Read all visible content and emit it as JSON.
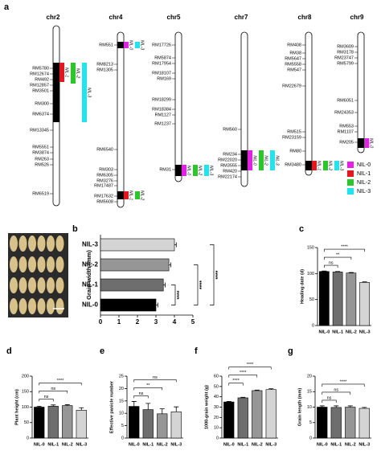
{
  "chromosome_map": {
    "panel": "a",
    "chromosomes": [
      {
        "name": "chr2",
        "markers": [
          "RM5780",
          "RM12674",
          "RM492",
          "RM12857",
          "RM3501",
          "RM300",
          "RM6374",
          "RM13345",
          "RM5551",
          "RM3874",
          "RM263",
          "RM526",
          "RM6519"
        ],
        "segments": [
          "NIL-1",
          "NIL-2",
          "NIL-3"
        ]
      },
      {
        "name": "chr4",
        "markers": [
          "RM551",
          "RM8213",
          "RM1305",
          "RM6540",
          "RM303",
          "RM6305",
          "RM3276",
          "RM17487",
          "RM17632",
          "RM5608"
        ],
        "segments": [
          "NIL-0",
          "NIL-3",
          "NIL-1",
          "NIL-2"
        ]
      },
      {
        "name": "chr5",
        "markers": [
          "RM17726",
          "RM5874",
          "RM17954",
          "RM18107",
          "RM169",
          "RM18299",
          "RM18384",
          "RM1127",
          "RM1237",
          "RM31"
        ],
        "segments": [
          "NIL-0",
          "NIL-2",
          "NIL-3"
        ]
      },
      {
        "name": "chr7",
        "markers": [
          "RM560",
          "RM234",
          "RM22020",
          "RM3555",
          "RM420",
          "RM22174"
        ],
        "segments": [
          "NIL-0",
          "NIL-2",
          "NIL-3"
        ]
      },
      {
        "name": "chr8",
        "markers": [
          "RM408",
          "RM38",
          "RM5647",
          "RM5558",
          "RM547",
          "RM22679",
          "RM515",
          "RM23159",
          "RM80",
          "RM3480"
        ],
        "segments": [
          "NIL-1",
          "NIL-2",
          "NIL-3"
        ]
      },
      {
        "name": "chr9",
        "markers": [
          "RM3609",
          "RM3178",
          "RM23747",
          "RM5799",
          "RM6051",
          "RM24353",
          "RM553",
          "RM1107",
          "RM205"
        ],
        "segments": [
          "NIL-0"
        ]
      }
    ],
    "legend": [
      {
        "label": "NIL-0",
        "color": "#e81ee8"
      },
      {
        "label": "NIL-1",
        "color": "#e8141e"
      },
      {
        "label": "NIL-2",
        "color": "#28c828"
      },
      {
        "label": "NIL-3",
        "color": "#1ee6f0"
      }
    ]
  },
  "chart_data": [
    {
      "panel": "b",
      "type": "hbar",
      "categories": [
        "NIL-0",
        "NIL-1",
        "NIL-2",
        "NIL-3"
      ],
      "values": [
        3.0,
        3.4,
        3.7,
        4.0
      ],
      "errors": [
        0.1,
        0.1,
        0.1,
        0.1
      ],
      "colors": [
        "#000000",
        "#6e6e6e",
        "#969696",
        "#d4d4d4"
      ],
      "xlabel": "Grain width (mm)",
      "xlim": [
        0,
        5
      ],
      "xticks": [
        0,
        1,
        2,
        3,
        4,
        5
      ],
      "significance": [
        "****",
        "****",
        "****"
      ]
    },
    {
      "panel": "c",
      "type": "bar",
      "categories": [
        "NIL-0",
        "NIL-1",
        "NIL-2",
        "NIL-3"
      ],
      "values": [
        104,
        103,
        101,
        83
      ],
      "errors": [
        1,
        1,
        1,
        1
      ],
      "colors": [
        "#000000",
        "#6e6e6e",
        "#969696",
        "#d4d4d4"
      ],
      "ylabel": "Heading date (d)",
      "ylim": [
        0,
        150
      ],
      "yticks": [
        0,
        50,
        100,
        150
      ],
      "significance": [
        "ns",
        "**",
        "****"
      ]
    },
    {
      "panel": "d",
      "type": "bar",
      "categories": [
        "NIL-0",
        "NIL-1",
        "NIL-2",
        "NIL-3"
      ],
      "values": [
        100,
        103,
        105,
        90
      ],
      "errors": [
        3,
        4,
        3,
        8
      ],
      "colors": [
        "#000000",
        "#6e6e6e",
        "#969696",
        "#d4d4d4"
      ],
      "ylabel": "Plant height (cm)",
      "ylim": [
        0,
        200
      ],
      "yticks": [
        0,
        50,
        100,
        150,
        200
      ],
      "significance": [
        "ns",
        "ns",
        "****"
      ]
    },
    {
      "panel": "e",
      "type": "bar",
      "categories": [
        "NIL-0",
        "NIL-1",
        "NIL-2",
        "NIL-3"
      ],
      "values": [
        12.8,
        11.5,
        9.8,
        10.6
      ],
      "errors": [
        2,
        2.5,
        2,
        2
      ],
      "colors": [
        "#000000",
        "#6e6e6e",
        "#969696",
        "#d4d4d4"
      ],
      "ylabel": "Effective panicle number",
      "ylim": [
        0,
        25
      ],
      "yticks": [
        0,
        5,
        10,
        15,
        20,
        25
      ],
      "significance": [
        "ns",
        "**",
        "ns"
      ]
    },
    {
      "panel": "f",
      "type": "bar",
      "categories": [
        "NIL-0",
        "NIL-1",
        "NIL-2",
        "NIL-3"
      ],
      "values": [
        35,
        39,
        46,
        47
      ],
      "errors": [
        0.5,
        0.5,
        0.5,
        0.8
      ],
      "colors": [
        "#000000",
        "#6e6e6e",
        "#969696",
        "#d4d4d4"
      ],
      "ylabel": "1000-grain weight (g)",
      "ylim": [
        0,
        60
      ],
      "yticks": [
        0,
        10,
        20,
        30,
        40,
        50,
        60
      ],
      "significance": [
        "****",
        "****",
        "****"
      ]
    },
    {
      "panel": "g",
      "type": "bar",
      "categories": [
        "NIL-0",
        "NIL-1",
        "NIL-2",
        "NIL-3"
      ],
      "values": [
        10.0,
        9.9,
        10.0,
        9.6
      ],
      "errors": [
        0.4,
        0.5,
        0.4,
        0.3
      ],
      "colors": [
        "#000000",
        "#6e6e6e",
        "#969696",
        "#d4d4d4"
      ],
      "ylabel": "Grain length (mm)",
      "ylim": [
        0,
        20
      ],
      "yticks": [
        0,
        5,
        10,
        15,
        20
      ],
      "significance": [
        "ns",
        "ns",
        "****"
      ]
    }
  ]
}
